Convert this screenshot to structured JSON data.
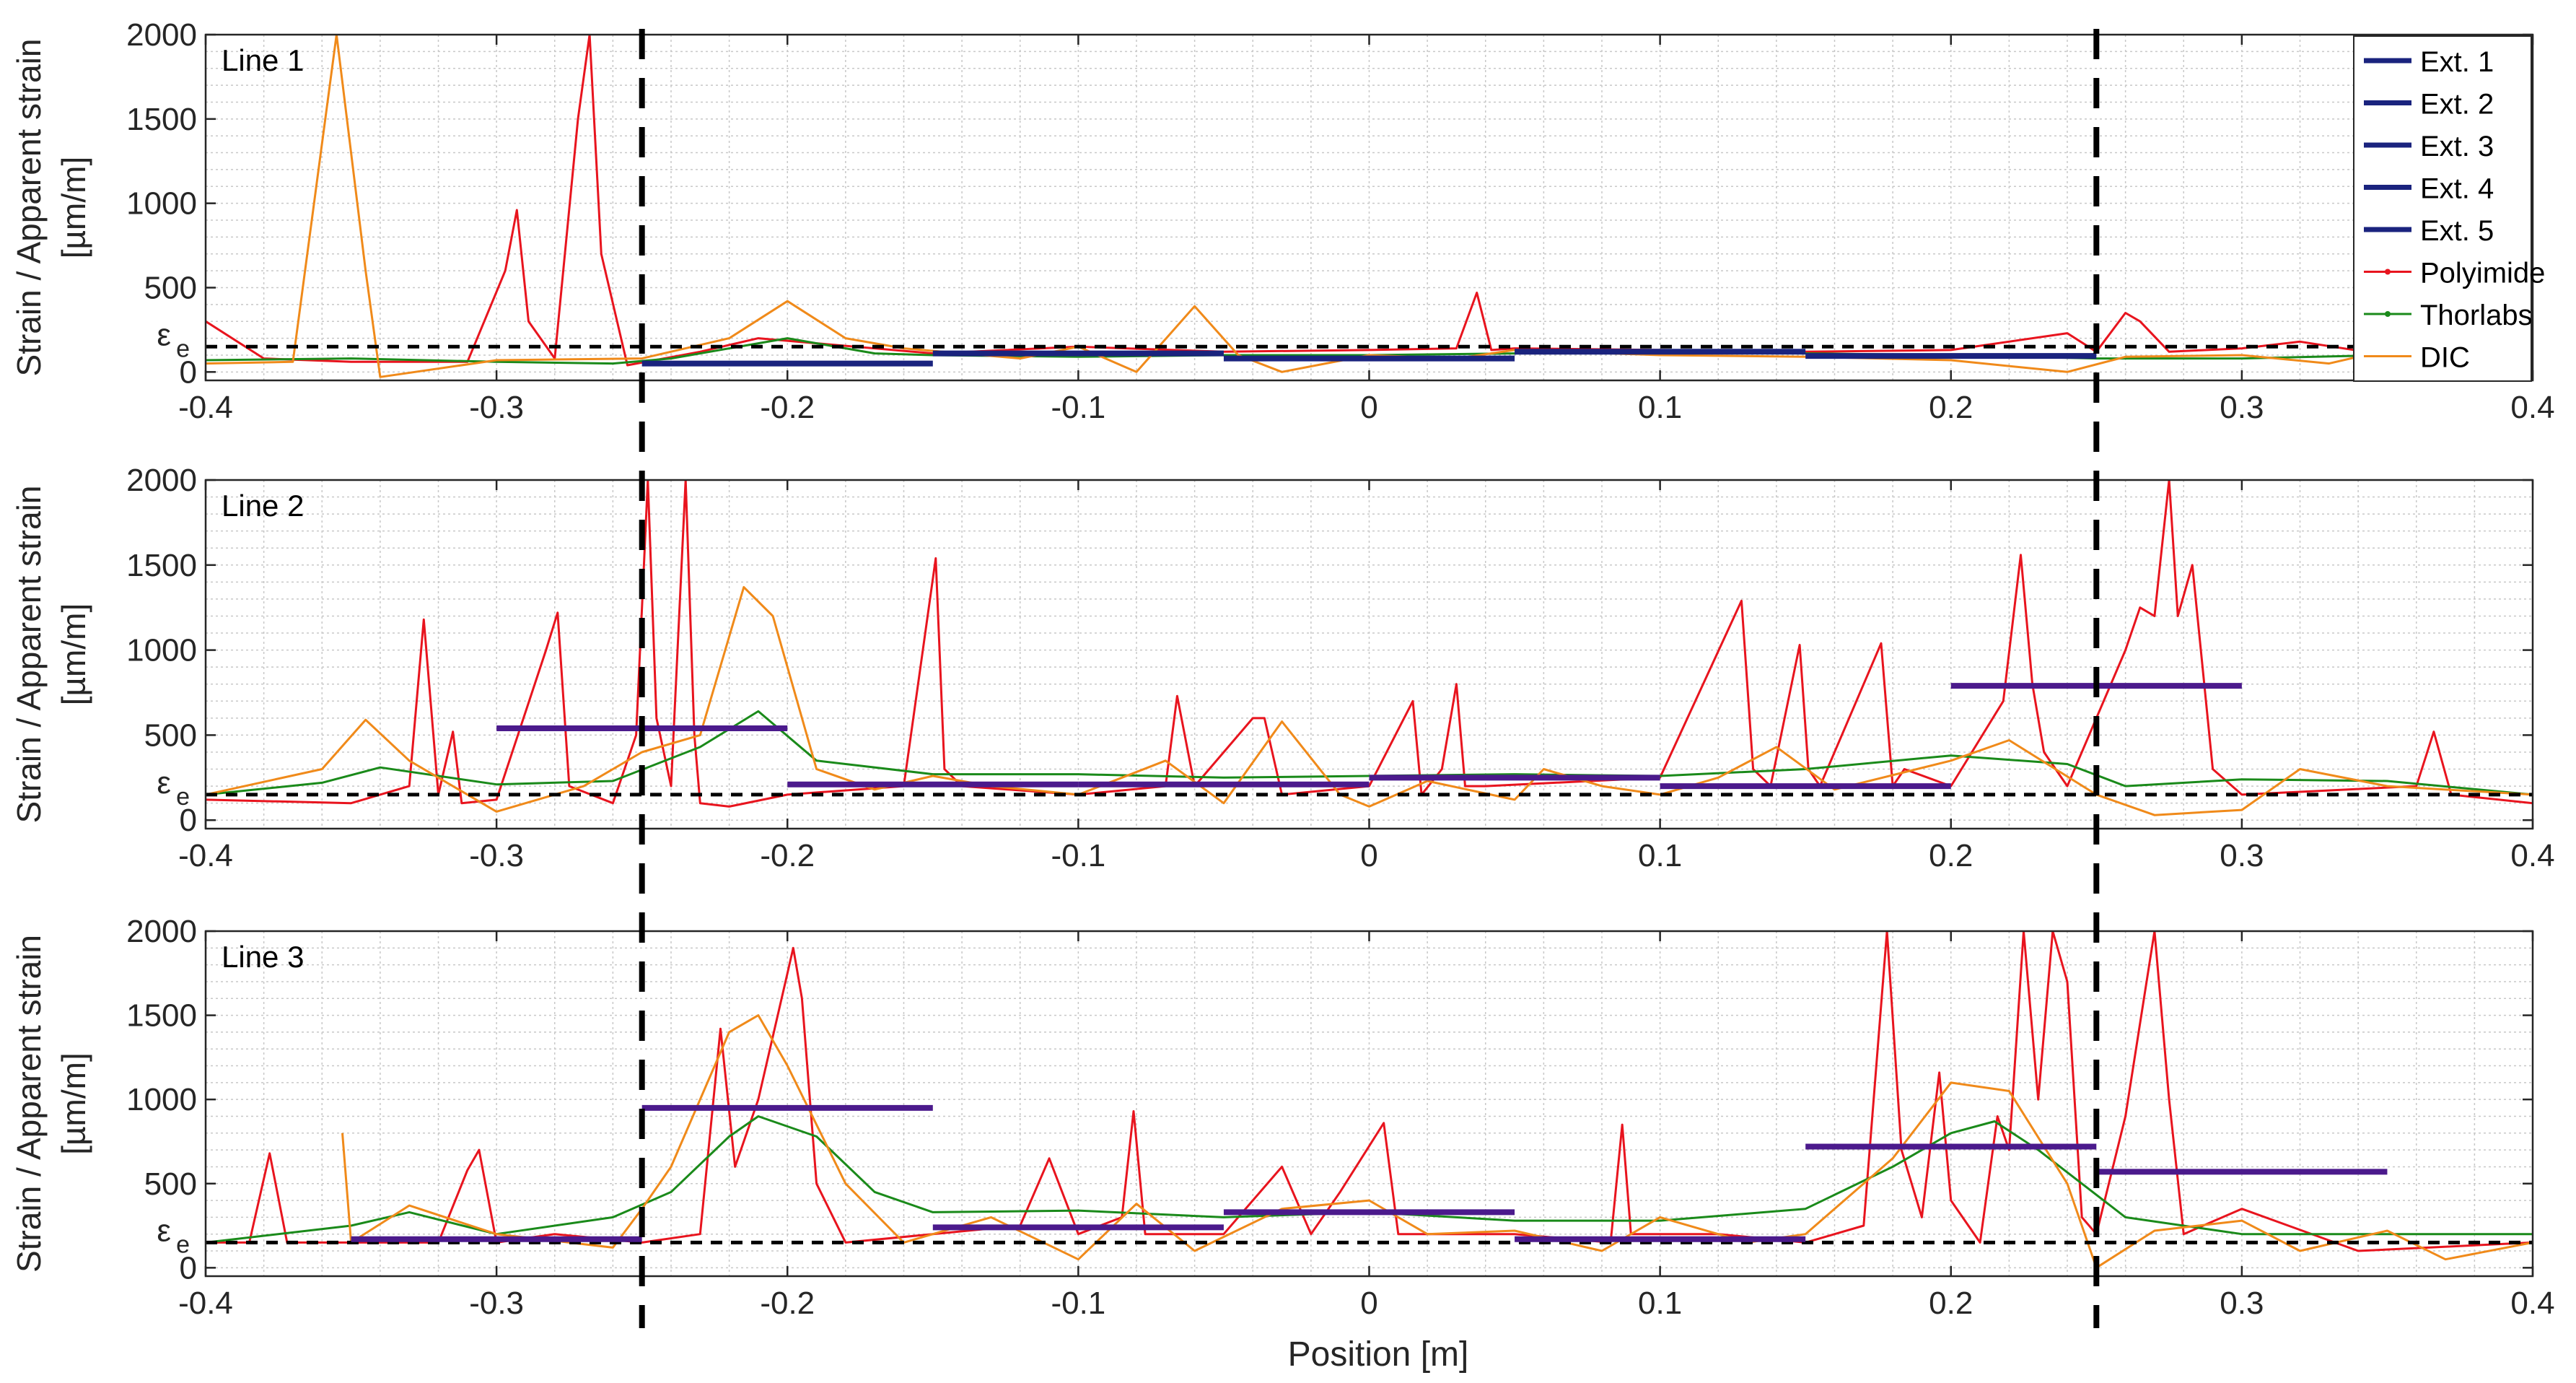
{
  "figure": {
    "xlabel": "Position [m]",
    "ylabel_line1": "Strain / Apparent strain",
    "ylabel_line2": "[µm/m]",
    "eps_symbol": "ε",
    "eps_subscript": "e"
  },
  "colors": {
    "extensometer": "#1a237e",
    "extensometer_panel23": "#4b1a8c",
    "polyimide": "#e8141e",
    "thorlabs": "#1a8a1a",
    "dic": "#f08a1a",
    "grid": "#c8c8c8",
    "axis": "#262626",
    "reference": "#000000"
  },
  "legend": [
    {
      "label": "Ext. 1",
      "color": "#1a237e"
    },
    {
      "label": "Ext. 2",
      "color": "#1a237e"
    },
    {
      "label": "Ext. 3",
      "color": "#1a237e"
    },
    {
      "label": "Ext. 4",
      "color": "#1a237e"
    },
    {
      "label": "Ext. 5",
      "color": "#1a237e"
    },
    {
      "label": "Polyimide",
      "color": "#e8141e"
    },
    {
      "label": "Thorlabs",
      "color": "#1a8a1a"
    },
    {
      "label": "DIC",
      "color": "#f08a1a"
    }
  ],
  "chart_data": [
    {
      "type": "line",
      "title": "Line 1",
      "xlim": [
        -0.4,
        0.4
      ],
      "ylim": [
        -50,
        2000
      ],
      "xticks": [
        -0.4,
        -0.3,
        -0.2,
        -0.1,
        0,
        0.1,
        0.2,
        0.3,
        0.4
      ],
      "xtick_labels": [
        "-0.4",
        "-0.3",
        "-0.2",
        "-0.1",
        "0",
        "0.1",
        "0.2",
        "0.3",
        "0.4"
      ],
      "yticks": [
        0,
        500,
        1000,
        1500,
        2000
      ],
      "ytick_labels": [
        "0",
        "500",
        "1000",
        "1500",
        "2000"
      ],
      "grid": true,
      "legend_position": "top-right",
      "eps_e": 150,
      "vertical_dashed_x": [
        -0.25,
        0.25
      ],
      "extensometers": [
        {
          "x": [
            -0.25,
            -0.15
          ],
          "value": 50
        },
        {
          "x": [
            -0.15,
            -0.05
          ],
          "value": 110
        },
        {
          "x": [
            -0.05,
            0.05
          ],
          "value": 80
        },
        {
          "x": [
            0.05,
            0.15
          ],
          "value": 120
        },
        {
          "x": [
            0.15,
            0.25
          ],
          "value": 95
        }
      ],
      "series": [
        {
          "name": "Polyimide",
          "x": [
            -0.4,
            -0.38,
            -0.35,
            -0.31,
            -0.297,
            -0.293,
            -0.289,
            -0.28,
            -0.272,
            -0.268,
            -0.264,
            -0.255,
            -0.23,
            -0.21,
            -0.19,
            -0.15,
            -0.1,
            -0.05,
            0,
            0.03,
            0.037,
            0.042,
            0.05,
            0.1,
            0.15,
            0.2,
            0.24,
            0.25,
            0.26,
            0.265,
            0.275,
            0.3,
            0.32,
            0.35,
            0.4
          ],
          "y": [
            300,
            80,
            60,
            60,
            600,
            960,
            300,
            80,
            1500,
            2000,
            700,
            40,
            120,
            200,
            170,
            110,
            150,
            120,
            130,
            140,
            470,
            130,
            140,
            130,
            120,
            130,
            230,
            120,
            350,
            300,
            120,
            140,
            180,
            100,
            120
          ]
        },
        {
          "name": "Thorlabs",
          "x": [
            -0.4,
            -0.35,
            -0.3,
            -0.26,
            -0.24,
            -0.2,
            -0.17,
            -0.15,
            -0.1,
            -0.05,
            0,
            0.05,
            0.1,
            0.15,
            0.2,
            0.25,
            0.3,
            0.35,
            0.4
          ],
          "y": [
            70,
            80,
            60,
            50,
            80,
            200,
            110,
            100,
            90,
            100,
            100,
            110,
            120,
            110,
            100,
            80,
            80,
            100,
            110
          ]
        },
        {
          "name": "DIC",
          "x": [
            -0.4,
            -0.37,
            -0.355,
            -0.345,
            -0.34,
            -0.3,
            -0.25,
            -0.22,
            -0.2,
            -0.18,
            -0.16,
            -0.12,
            -0.1,
            -0.08,
            -0.06,
            -0.045,
            -0.03,
            0,
            0.03,
            0.05,
            0.1,
            0.15,
            0.2,
            0.24,
            0.26,
            0.3,
            0.33,
            0.35,
            0.4
          ],
          "y": [
            50,
            60,
            2000,
            600,
            -30,
            70,
            80,
            200,
            420,
            200,
            140,
            80,
            150,
            0,
            390,
            100,
            0,
            100,
            80,
            130,
            100,
            90,
            70,
            0,
            90,
            100,
            50,
            130,
            150
          ]
        }
      ]
    },
    {
      "type": "line",
      "title": "Line 2",
      "xlim": [
        -0.4,
        0.4
      ],
      "ylim": [
        -50,
        2000
      ],
      "xticks": [
        -0.4,
        -0.3,
        -0.2,
        -0.1,
        0,
        0.1,
        0.2,
        0.3,
        0.4
      ],
      "xtick_labels": [
        "-0.4",
        "-0.3",
        "-0.2",
        "-0.1",
        "0",
        "0.1",
        "0.2",
        "0.3",
        "0.4"
      ],
      "yticks": [
        0,
        500,
        1000,
        1500,
        2000
      ],
      "ytick_labels": [
        "0",
        "500",
        "1000",
        "1500",
        "2000"
      ],
      "grid": true,
      "eps_e": 150,
      "vertical_dashed_x": [
        -0.25,
        0.25
      ],
      "extensometers": [
        {
          "x": [
            -0.3,
            -0.2
          ],
          "value": 540
        },
        {
          "x": [
            -0.2,
            -0.1
          ],
          "value": 210
        },
        {
          "x": [
            -0.1,
            0
          ],
          "value": 210
        },
        {
          "x": [
            0,
            0.1
          ],
          "value": 250
        },
        {
          "x": [
            0.1,
            0.2
          ],
          "value": 200
        },
        {
          "x": [
            0.2,
            0.3
          ],
          "value": 790
        }
      ],
      "series": [
        {
          "name": "Polyimide",
          "x": [
            -0.4,
            -0.35,
            -0.33,
            -0.325,
            -0.32,
            -0.315,
            -0.312,
            -0.3,
            -0.283,
            -0.279,
            -0.275,
            -0.26,
            -0.252,
            -0.248,
            -0.245,
            -0.24,
            -0.235,
            -0.232,
            -0.23,
            -0.22,
            -0.2,
            -0.16,
            -0.149,
            -0.146,
            -0.14,
            -0.1,
            -0.07,
            -0.066,
            -0.06,
            -0.04,
            -0.036,
            -0.03,
            0,
            0.015,
            0.018,
            0.025,
            0.03,
            0.033,
            0.04,
            0.1,
            0.128,
            0.132,
            0.138,
            0.148,
            0.151,
            0.155,
            0.176,
            0.18,
            0.184,
            0.2,
            0.218,
            0.224,
            0.228,
            0.232,
            0.24,
            0.26,
            0.265,
            0.27,
            0.275,
            0.278,
            0.283,
            0.29,
            0.3,
            0.36,
            0.366,
            0.372,
            0.4
          ],
          "y": [
            120,
            100,
            200,
            1180,
            150,
            520,
            100,
            120,
            1000,
            1220,
            200,
            100,
            500,
            2000,
            600,
            200,
            2000,
            500,
            100,
            80,
            150,
            200,
            1540,
            300,
            200,
            150,
            200,
            730,
            200,
            600,
            600,
            150,
            200,
            700,
            150,
            300,
            800,
            200,
            200,
            250,
            1290,
            300,
            200,
            1030,
            300,
            200,
            1040,
            200,
            300,
            200,
            700,
            1560,
            800,
            400,
            200,
            1000,
            1250,
            1200,
            2000,
            1200,
            1500,
            300,
            150,
            200,
            520,
            150,
            100
          ]
        },
        {
          "name": "Thorlabs",
          "x": [
            -0.4,
            -0.36,
            -0.34,
            -0.3,
            -0.26,
            -0.23,
            -0.21,
            -0.19,
            -0.15,
            -0.1,
            -0.05,
            0,
            0.05,
            0.1,
            0.15,
            0.2,
            0.24,
            0.26,
            0.3,
            0.35,
            0.4
          ],
          "y": [
            150,
            220,
            310,
            210,
            230,
            430,
            640,
            350,
            270,
            270,
            250,
            260,
            270,
            260,
            300,
            380,
            330,
            200,
            240,
            230,
            150
          ]
        },
        {
          "name": "DIC",
          "x": [
            -0.4,
            -0.36,
            -0.345,
            -0.33,
            -0.3,
            -0.27,
            -0.25,
            -0.23,
            -0.215,
            -0.205,
            -0.19,
            -0.17,
            -0.15,
            -0.13,
            -0.1,
            -0.07,
            -0.05,
            -0.03,
            -0.01,
            0,
            0.02,
            0.05,
            0.06,
            0.08,
            0.1,
            0.12,
            0.14,
            0.16,
            0.2,
            0.22,
            0.25,
            0.27,
            0.3,
            0.32,
            0.35,
            0.4
          ],
          "y": [
            150,
            300,
            590,
            350,
            50,
            200,
            400,
            500,
            1370,
            1200,
            300,
            180,
            260,
            200,
            150,
            350,
            100,
            580,
            150,
            80,
            230,
            120,
            300,
            200,
            150,
            250,
            430,
            180,
            350,
            470,
            150,
            30,
            60,
            300,
            200,
            150
          ]
        }
      ]
    },
    {
      "type": "line",
      "title": "Line 3",
      "xlim": [
        -0.4,
        0.4
      ],
      "ylim": [
        -50,
        2000
      ],
      "xticks": [
        -0.4,
        -0.3,
        -0.2,
        -0.1,
        0,
        0.1,
        0.2,
        0.3,
        0.4
      ],
      "xtick_labels": [
        "-0.4",
        "-0.3",
        "-0.2",
        "-0.1",
        "0",
        "0.1",
        "0.2",
        "0.3",
        "0.4"
      ],
      "yticks": [
        0,
        500,
        1000,
        1500,
        2000
      ],
      "ytick_labels": [
        "0",
        "500",
        "1000",
        "1500",
        "2000"
      ],
      "grid": true,
      "eps_e": 150,
      "vertical_dashed_x": [
        -0.25,
        0.25
      ],
      "extensometers": [
        {
          "x": [
            -0.35,
            -0.25
          ],
          "value": 170
        },
        {
          "x": [
            -0.25,
            -0.15
          ],
          "value": 950
        },
        {
          "x": [
            -0.15,
            -0.05
          ],
          "value": 240
        },
        {
          "x": [
            -0.05,
            0.05
          ],
          "value": 330
        },
        {
          "x": [
            0.05,
            0.15
          ],
          "value": 170
        },
        {
          "x": [
            0.15,
            0.25
          ],
          "value": 720
        },
        {
          "x": [
            0.25,
            0.35
          ],
          "value": 570
        }
      ],
      "series": [
        {
          "name": "Polyimide",
          "x": [
            -0.4,
            -0.385,
            -0.378,
            -0.372,
            -0.36,
            -0.32,
            -0.31,
            -0.306,
            -0.3,
            -0.28,
            -0.25,
            -0.23,
            -0.223,
            -0.218,
            -0.21,
            -0.2,
            -0.198,
            -0.195,
            -0.19,
            -0.18,
            -0.15,
            -0.12,
            -0.11,
            -0.1,
            -0.085,
            -0.081,
            -0.077,
            -0.05,
            -0.03,
            -0.02,
            -0.01,
            0.005,
            0.01,
            0.02,
            0.05,
            0.083,
            0.087,
            0.09,
            0.12,
            0.15,
            0.17,
            0.178,
            0.183,
            0.19,
            0.196,
            0.2,
            0.21,
            0.216,
            0.22,
            0.225,
            0.23,
            0.235,
            0.24,
            0.245,
            0.25,
            0.26,
            0.27,
            0.275,
            0.28,
            0.3,
            0.34,
            0.4
          ],
          "y": [
            150,
            150,
            680,
            150,
            150,
            150,
            580,
            700,
            150,
            200,
            150,
            200,
            1420,
            600,
            1000,
            1750,
            1900,
            1600,
            500,
            150,
            200,
            250,
            650,
            200,
            300,
            930,
            200,
            200,
            600,
            200,
            450,
            860,
            200,
            200,
            200,
            150,
            850,
            200,
            200,
            150,
            250,
            2000,
            700,
            300,
            1160,
            400,
            150,
            900,
            700,
            2000,
            1000,
            2000,
            1700,
            300,
            200,
            900,
            2000,
            1000,
            200,
            350,
            100,
            150
          ]
        },
        {
          "name": "Thorlabs",
          "x": [
            -0.4,
            -0.35,
            -0.33,
            -0.3,
            -0.26,
            -0.24,
            -0.22,
            -0.21,
            -0.19,
            -0.17,
            -0.15,
            -0.1,
            -0.05,
            0,
            0.05,
            0.1,
            0.15,
            0.18,
            0.2,
            0.215,
            0.23,
            0.26,
            0.3,
            0.35,
            0.4
          ],
          "y": [
            150,
            250,
            330,
            200,
            300,
            450,
            780,
            900,
            780,
            450,
            330,
            340,
            300,
            330,
            280,
            280,
            350,
            600,
            800,
            870,
            700,
            300,
            200,
            200,
            200
          ]
        },
        {
          "name": "DIC",
          "x": [
            -0.353,
            -0.35,
            -0.33,
            -0.3,
            -0.26,
            -0.25,
            -0.24,
            -0.22,
            -0.21,
            -0.2,
            -0.18,
            -0.16,
            -0.13,
            -0.1,
            -0.08,
            -0.06,
            -0.03,
            0,
            0.02,
            0.05,
            0.08,
            0.1,
            0.13,
            0.15,
            0.18,
            0.2,
            0.22,
            0.24,
            0.25,
            0.27,
            0.3,
            0.32,
            0.35,
            0.37,
            0.4
          ],
          "y": [
            800,
            150,
            370,
            200,
            120,
            350,
            600,
            1400,
            1500,
            1200,
            500,
            150,
            300,
            50,
            380,
            100,
            350,
            400,
            200,
            220,
            100,
            300,
            150,
            200,
            650,
            1100,
            1050,
            500,
            0,
            220,
            280,
            100,
            220,
            50,
            150
          ]
        }
      ]
    }
  ]
}
